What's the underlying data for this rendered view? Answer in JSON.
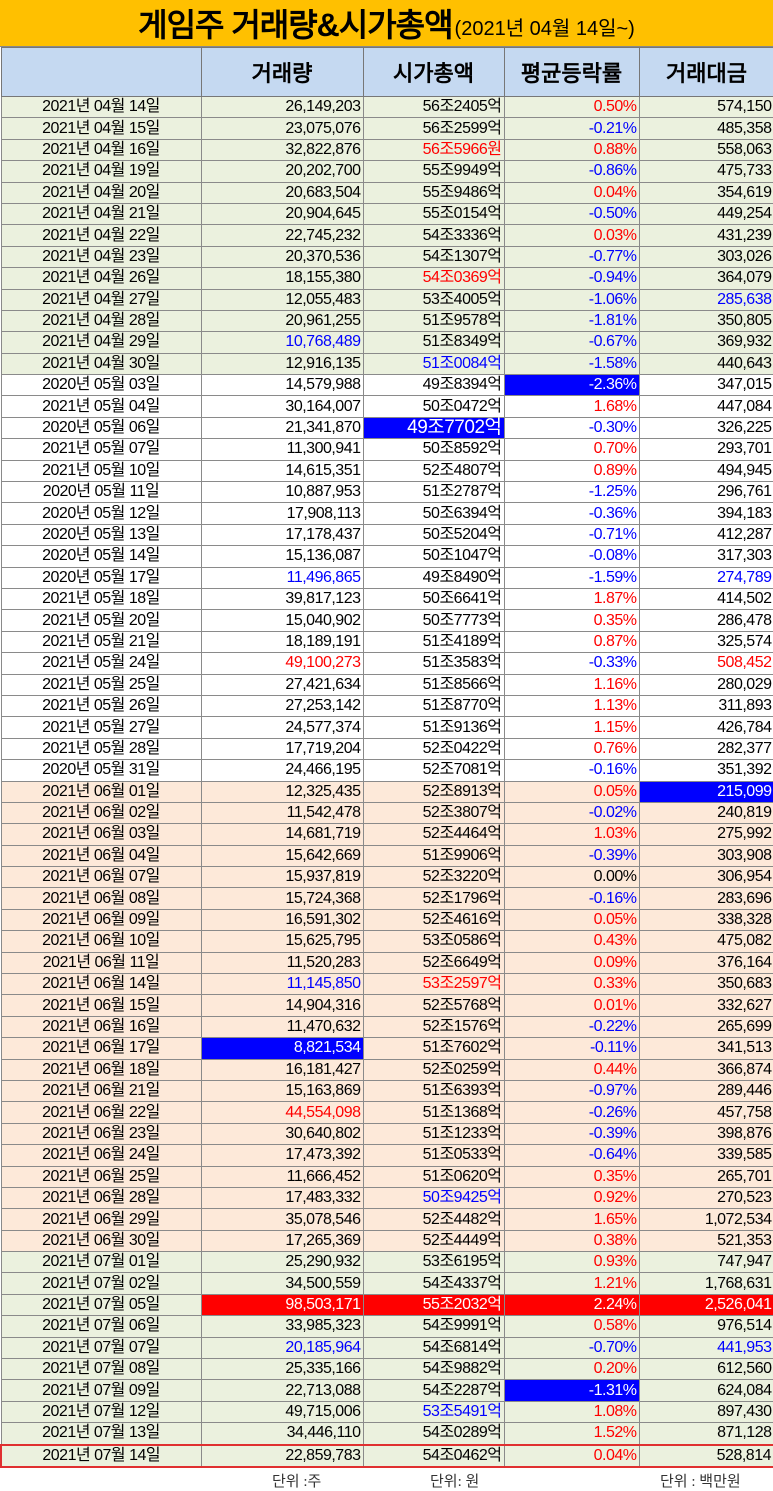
{
  "title": {
    "main": "게임주 거래량&시가총액",
    "sub": "(2021년 04월 14일~)"
  },
  "header": {
    "date": "",
    "volume": "거래량",
    "market_cap": "시가총액",
    "avg_change": "평균등락률",
    "trade_value": "거래대금"
  },
  "colors": {
    "title_bg": "#ffc000",
    "header_bg": "#c5d9f1",
    "april_july_row": "#ebf1de",
    "may_row": "#ffffff",
    "june_row": "#fde9d9",
    "up": "#ff0000",
    "down": "#0000ff",
    "highlight_blue": "#0000ff",
    "highlight_red": "#ff0000"
  },
  "style_legend": {
    "r": "red text",
    "b": "blue text",
    "hb": "blue highlight",
    "hr": "red highlight",
    "": "black text"
  },
  "rows": [
    {
      "g": "apr",
      "c": [
        "2021년 04월 14일",
        "26,149,203",
        "56조2405억",
        "0.50%",
        "574,150"
      ],
      "s": [
        "",
        "",
        "",
        "r",
        ""
      ]
    },
    {
      "g": "apr",
      "c": [
        "2021년 04월 15일",
        "23,075,076",
        "56조2599억",
        "-0.21%",
        "485,358"
      ],
      "s": [
        "",
        "",
        "",
        "b",
        ""
      ]
    },
    {
      "g": "apr",
      "c": [
        "2021년 04월 16일",
        "32,822,876",
        "56조5966원",
        "0.88%",
        "558,063"
      ],
      "s": [
        "",
        "",
        "r",
        "r",
        ""
      ]
    },
    {
      "g": "apr",
      "c": [
        "2021년 04월 19일",
        "20,202,700",
        "55조9949억",
        "-0.86%",
        "475,733"
      ],
      "s": [
        "",
        "",
        "",
        "b",
        ""
      ]
    },
    {
      "g": "apr",
      "c": [
        "2021년 04월 20일",
        "20,683,504",
        "55조9486억",
        "0.04%",
        "354,619"
      ],
      "s": [
        "",
        "",
        "",
        "r",
        ""
      ]
    },
    {
      "g": "apr",
      "c": [
        "2021년 04월 21일",
        "20,904,645",
        "55조0154억",
        "-0.50%",
        "449,254"
      ],
      "s": [
        "",
        "",
        "",
        "b",
        ""
      ]
    },
    {
      "g": "apr",
      "c": [
        "2021년 04월 22일",
        "22,745,232",
        "54조3336억",
        "0.03%",
        "431,239"
      ],
      "s": [
        "",
        "",
        "",
        "r",
        ""
      ]
    },
    {
      "g": "apr",
      "c": [
        "2021년 04월 23일",
        "20,370,536",
        "54조1307억",
        "-0.77%",
        "303,026"
      ],
      "s": [
        "",
        "",
        "",
        "b",
        ""
      ]
    },
    {
      "g": "apr",
      "c": [
        "2021년 04월 26일",
        "18,155,380",
        "54조0369억",
        "-0.94%",
        "364,079"
      ],
      "s": [
        "",
        "",
        "r",
        "b",
        ""
      ]
    },
    {
      "g": "apr",
      "c": [
        "2021년 04월 27일",
        "12,055,483",
        "53조4005억",
        "-1.06%",
        "285,638"
      ],
      "s": [
        "",
        "",
        "",
        "b",
        "b"
      ]
    },
    {
      "g": "apr",
      "c": [
        "2021년 04월 28일",
        "20,961,255",
        "51조9578억",
        "-1.81%",
        "350,805"
      ],
      "s": [
        "",
        "",
        "",
        "b",
        ""
      ]
    },
    {
      "g": "apr",
      "c": [
        "2021년 04월 29일",
        "10,768,489",
        "51조8349억",
        "-0.67%",
        "369,932"
      ],
      "s": [
        "",
        "b",
        "",
        "b",
        ""
      ]
    },
    {
      "g": "apr",
      "c": [
        "2021년 04월 30일",
        "12,916,135",
        "51조0084억",
        "-1.58%",
        "440,643"
      ],
      "s": [
        "",
        "",
        "b",
        "b",
        ""
      ]
    },
    {
      "g": "may",
      "c": [
        "2020년 05월 03일",
        "14,579,988",
        "49조8394억",
        "-2.36%",
        "347,015"
      ],
      "s": [
        "",
        "",
        "",
        "hb",
        ""
      ]
    },
    {
      "g": "may",
      "c": [
        "2021년 05월 04일",
        "30,164,007",
        "50조0472억",
        "1.68%",
        "447,084"
      ],
      "s": [
        "",
        "",
        "",
        "r",
        ""
      ]
    },
    {
      "g": "may",
      "c": [
        "2020년 05월 06일",
        "21,341,870",
        "49조7702억",
        "-0.30%",
        "326,225"
      ],
      "s": [
        "",
        "",
        "hb big",
        "b",
        ""
      ]
    },
    {
      "g": "may",
      "c": [
        "2021년 05월 07일",
        "11,300,941",
        "50조8592억",
        "0.70%",
        "293,701"
      ],
      "s": [
        "",
        "",
        "",
        "r",
        ""
      ]
    },
    {
      "g": "may",
      "c": [
        "2021년 05월 10일",
        "14,615,351",
        "52조4807억",
        "0.89%",
        "494,945"
      ],
      "s": [
        "",
        "",
        "",
        "r",
        ""
      ]
    },
    {
      "g": "may",
      "c": [
        "2020년 05월 11일",
        "10,887,953",
        "51조2787억",
        "-1.25%",
        "296,761"
      ],
      "s": [
        "",
        "",
        "",
        "b",
        ""
      ]
    },
    {
      "g": "may",
      "c": [
        "2020년 05월 12일",
        "17,908,113",
        "50조6394억",
        "-0.36%",
        "394,183"
      ],
      "s": [
        "",
        "",
        "",
        "b",
        ""
      ]
    },
    {
      "g": "may",
      "c": [
        "2020년 05월 13일",
        "17,178,437",
        "50조5204억",
        "-0.71%",
        "412,287"
      ],
      "s": [
        "",
        "",
        "",
        "b",
        ""
      ]
    },
    {
      "g": "may",
      "c": [
        "2020년 05월 14일",
        "15,136,087",
        "50조1047억",
        "-0.08%",
        "317,303"
      ],
      "s": [
        "",
        "",
        "",
        "b",
        ""
      ]
    },
    {
      "g": "may",
      "c": [
        "2020년 05월 17일",
        "11,496,865",
        "49조8490억",
        "-1.59%",
        "274,789"
      ],
      "s": [
        "",
        "b",
        "",
        "b",
        "b"
      ]
    },
    {
      "g": "may",
      "c": [
        "2021년 05월 18일",
        "39,817,123",
        "50조6641억",
        "1.87%",
        "414,502"
      ],
      "s": [
        "",
        "",
        "",
        "r",
        ""
      ]
    },
    {
      "g": "may",
      "c": [
        "2021년 05월 20일",
        "15,040,902",
        "50조7773억",
        "0.35%",
        "286,478"
      ],
      "s": [
        "",
        "",
        "",
        "r",
        ""
      ]
    },
    {
      "g": "may",
      "c": [
        "2021년 05월 21일",
        "18,189,191",
        "51조4189억",
        "0.87%",
        "325,574"
      ],
      "s": [
        "",
        "",
        "",
        "r",
        ""
      ]
    },
    {
      "g": "may",
      "c": [
        "2021년 05월 24일",
        "49,100,273",
        "51조3583억",
        "-0.33%",
        "508,452"
      ],
      "s": [
        "",
        "r",
        "",
        "b",
        "r"
      ]
    },
    {
      "g": "may",
      "c": [
        "2021년 05월 25일",
        "27,421,634",
        "51조8566억",
        "1.16%",
        "280,029"
      ],
      "s": [
        "",
        "",
        "",
        "r",
        ""
      ]
    },
    {
      "g": "may",
      "c": [
        "2021년 05월 26일",
        "27,253,142",
        "51조8770억",
        "1.13%",
        "311,893"
      ],
      "s": [
        "",
        "",
        "",
        "r",
        ""
      ]
    },
    {
      "g": "may",
      "c": [
        "2021년 05월 27일",
        "24,577,374",
        "51조9136억",
        "1.15%",
        "426,784"
      ],
      "s": [
        "",
        "",
        "",
        "r",
        ""
      ]
    },
    {
      "g": "may",
      "c": [
        "2021년 05월 28일",
        "17,719,204",
        "52조0422억",
        "0.76%",
        "282,377"
      ],
      "s": [
        "",
        "",
        "",
        "r",
        ""
      ]
    },
    {
      "g": "may",
      "c": [
        "2020년 05월 31일",
        "24,466,195",
        "52조7081억",
        "-0.16%",
        "351,392"
      ],
      "s": [
        "",
        "",
        "",
        "b",
        ""
      ]
    },
    {
      "g": "jun",
      "c": [
        "2021년 06월 01일",
        "12,325,435",
        "52조8913억",
        "0.05%",
        "215,099"
      ],
      "s": [
        "",
        "",
        "",
        "r",
        "hb"
      ]
    },
    {
      "g": "jun",
      "c": [
        "2021년 06월 02일",
        "11,542,478",
        "52조3807억",
        "-0.02%",
        "240,819"
      ],
      "s": [
        "",
        "",
        "",
        "b",
        ""
      ]
    },
    {
      "g": "jun",
      "c": [
        "2021년 06월 03일",
        "14,681,719",
        "52조4464억",
        "1.03%",
        "275,992"
      ],
      "s": [
        "",
        "",
        "",
        "r",
        ""
      ]
    },
    {
      "g": "jun",
      "c": [
        "2021년 06월 04일",
        "15,642,669",
        "51조9906억",
        "-0.39%",
        "303,908"
      ],
      "s": [
        "",
        "",
        "",
        "b",
        ""
      ]
    },
    {
      "g": "jun",
      "c": [
        "2021년 06월 07일",
        "15,937,819",
        "52조3220억",
        "0.00%",
        "306,954"
      ],
      "s": [
        "",
        "",
        "",
        "",
        ""
      ]
    },
    {
      "g": "jun",
      "c": [
        "2021년 06월 08일",
        "15,724,368",
        "52조1796억",
        "-0.16%",
        "283,696"
      ],
      "s": [
        "",
        "",
        "",
        "b",
        ""
      ]
    },
    {
      "g": "jun",
      "c": [
        "2021년 06월 09일",
        "16,591,302",
        "52조4616억",
        "0.05%",
        "338,328"
      ],
      "s": [
        "",
        "",
        "",
        "r",
        ""
      ]
    },
    {
      "g": "jun",
      "c": [
        "2021년 06월 10일",
        "15,625,795",
        "53조0586억",
        "0.43%",
        "475,082"
      ],
      "s": [
        "",
        "",
        "",
        "r",
        ""
      ]
    },
    {
      "g": "jun",
      "c": [
        "2021년 06월 11일",
        "11,520,283",
        "52조6649억",
        "0.09%",
        "376,164"
      ],
      "s": [
        "",
        "",
        "",
        "r",
        ""
      ]
    },
    {
      "g": "jun",
      "c": [
        "2021년 06월 14일",
        "11,145,850",
        "53조2597억",
        "0.33%",
        "350,683"
      ],
      "s": [
        "",
        "b",
        "r",
        "r",
        ""
      ]
    },
    {
      "g": "jun",
      "c": [
        "2021년 06월 15일",
        "14,904,316",
        "52조5768억",
        "0.01%",
        "332,627"
      ],
      "s": [
        "",
        "",
        "",
        "r",
        ""
      ]
    },
    {
      "g": "jun",
      "c": [
        "2021년 06월 16일",
        "11,470,632",
        "52조1576억",
        "-0.22%",
        "265,699"
      ],
      "s": [
        "",
        "",
        "",
        "b",
        ""
      ]
    },
    {
      "g": "jun",
      "c": [
        "2021년 06월 17일",
        "8,821,534",
        "51조7602억",
        "-0.11%",
        "341,513"
      ],
      "s": [
        "",
        "hb",
        "",
        "b",
        ""
      ]
    },
    {
      "g": "jun",
      "c": [
        "2021년 06월 18일",
        "16,181,427",
        "52조0259억",
        "0.44%",
        "366,874"
      ],
      "s": [
        "",
        "",
        "",
        "r",
        ""
      ]
    },
    {
      "g": "jun",
      "c": [
        "2021년 06월 21일",
        "15,163,869",
        "51조6393억",
        "-0.97%",
        "289,446"
      ],
      "s": [
        "",
        "",
        "",
        "b",
        ""
      ]
    },
    {
      "g": "jun",
      "c": [
        "2021년 06월 22일",
        "44,554,098",
        "51조1368억",
        "-0.26%",
        "457,758"
      ],
      "s": [
        "",
        "r",
        "",
        "b",
        ""
      ]
    },
    {
      "g": "jun",
      "c": [
        "2021년 06월 23일",
        "30,640,802",
        "51조1233억",
        "-0.39%",
        "398,876"
      ],
      "s": [
        "",
        "",
        "",
        "b",
        ""
      ]
    },
    {
      "g": "jun",
      "c": [
        "2021년 06월 24일",
        "17,473,392",
        "51조0533억",
        "-0.64%",
        "339,585"
      ],
      "s": [
        "",
        "",
        "",
        "b",
        ""
      ]
    },
    {
      "g": "jun",
      "c": [
        "2021년 06월 25일",
        "11,666,452",
        "51조0620억",
        "0.35%",
        "265,701"
      ],
      "s": [
        "",
        "",
        "",
        "r",
        ""
      ]
    },
    {
      "g": "jun",
      "c": [
        "2021년 06월 28일",
        "17,483,332",
        "50조9425억",
        "0.92%",
        "270,523"
      ],
      "s": [
        "",
        "",
        "b",
        "r",
        ""
      ]
    },
    {
      "g": "jun",
      "c": [
        "2021년 06월 29일",
        "35,078,546",
        "52조4482억",
        "1.65%",
        "1,072,534"
      ],
      "s": [
        "",
        "",
        "",
        "r",
        ""
      ]
    },
    {
      "g": "jun",
      "c": [
        "2021년 06월 30일",
        "17,265,369",
        "52조4449억",
        "0.38%",
        "521,353"
      ],
      "s": [
        "",
        "",
        "",
        "r",
        ""
      ]
    },
    {
      "g": "jul",
      "c": [
        "2021년 07월 01일",
        "25,290,932",
        "53조6195억",
        "0.93%",
        "747,947"
      ],
      "s": [
        "",
        "",
        "",
        "r",
        ""
      ]
    },
    {
      "g": "jul",
      "c": [
        "2021년 07월 02일",
        "34,500,559",
        "54조4337억",
        "1.21%",
        "1,768,631"
      ],
      "s": [
        "",
        "",
        "",
        "r",
        ""
      ]
    },
    {
      "g": "jul",
      "c": [
        "2021년 07월 05일",
        "98,503,171",
        "55조2032억",
        "2.24%",
        "2,526,041"
      ],
      "s": [
        "",
        "hr",
        "hr",
        "hr",
        "hr"
      ]
    },
    {
      "g": "jul",
      "c": [
        "2021년 07월 06일",
        "33,985,323",
        "54조9991억",
        "0.58%",
        "976,514"
      ],
      "s": [
        "",
        "",
        "",
        "r",
        ""
      ]
    },
    {
      "g": "jul",
      "c": [
        "2021년 07월 07일",
        "20,185,964",
        "54조6814억",
        "-0.70%",
        "441,953"
      ],
      "s": [
        "",
        "b",
        "",
        "b",
        "b"
      ]
    },
    {
      "g": "jul",
      "c": [
        "2021년 07월 08일",
        "25,335,166",
        "54조9882억",
        "0.20%",
        "612,560"
      ],
      "s": [
        "",
        "",
        "",
        "r",
        ""
      ]
    },
    {
      "g": "jul",
      "c": [
        "2021년 07월 09일",
        "22,713,088",
        "54조2287억",
        "-1.31%",
        "624,084"
      ],
      "s": [
        "",
        "",
        "",
        "hb",
        ""
      ]
    },
    {
      "g": "jul",
      "c": [
        "2021년 07월 12일",
        "49,715,006",
        "53조5491억",
        "1.08%",
        "897,430"
      ],
      "s": [
        "",
        "",
        "b",
        "r",
        ""
      ]
    },
    {
      "g": "jul",
      "c": [
        "2021년 07월 13일",
        "34,446,110",
        "54조0289억",
        "1.52%",
        "871,128"
      ],
      "s": [
        "",
        "",
        "",
        "r",
        ""
      ]
    },
    {
      "g": "jul",
      "c": [
        "2021년 07월 14일",
        "22,859,783",
        "54조0462억",
        "0.04%",
        "528,814"
      ],
      "s": [
        "",
        "",
        "",
        "r",
        ""
      ],
      "current": true
    }
  ],
  "footer": {
    "volume_unit": "단위 :주",
    "cap_unit": "단위: 원",
    "value_unit": "단위 : 백만원"
  }
}
